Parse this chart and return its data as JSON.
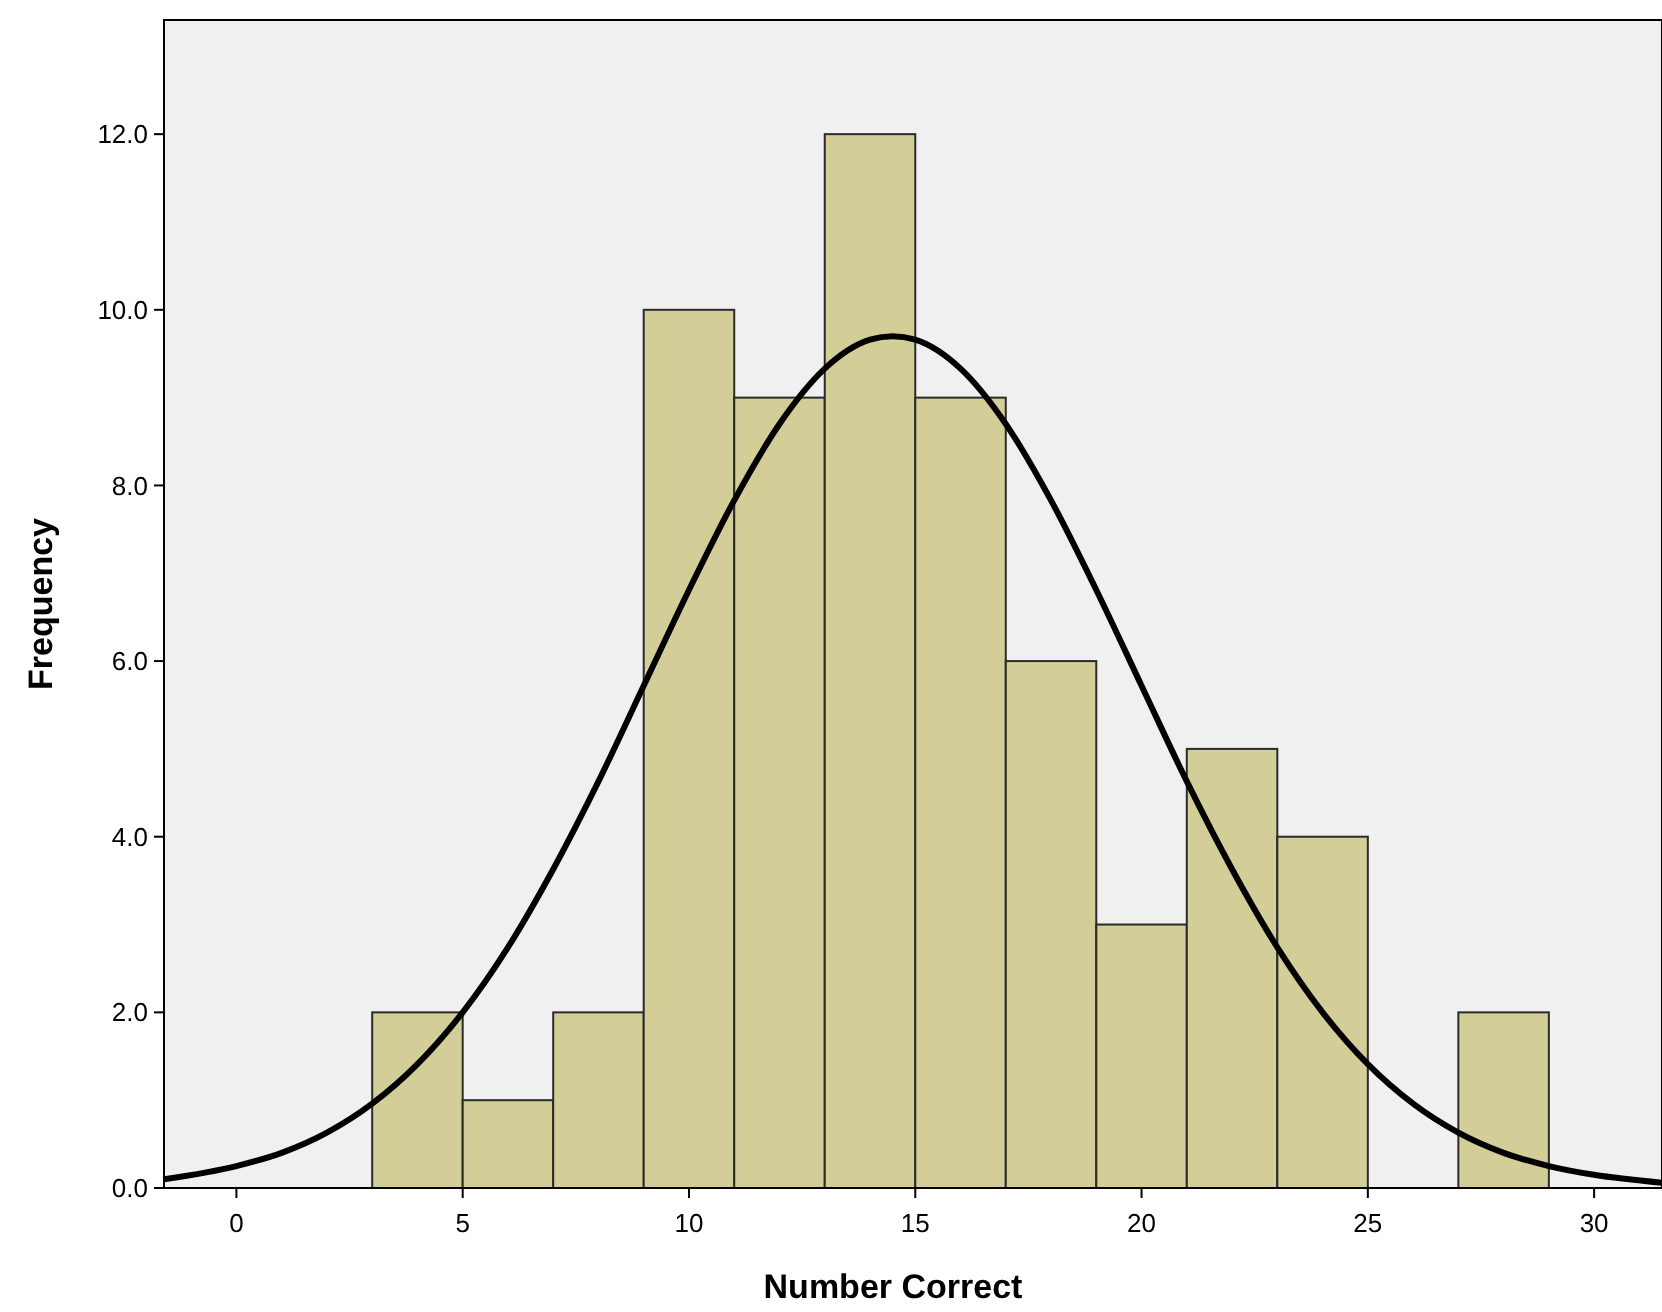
{
  "chart_data": {
    "type": "histogram",
    "xlabel": "Number Correct",
    "ylabel": "Frequency",
    "bins": [
      3,
      5,
      7,
      9,
      11,
      13,
      15,
      17,
      19,
      21,
      23,
      25,
      27,
      29
    ],
    "values": [
      2,
      1,
      2,
      10,
      9,
      12,
      9,
      6,
      3,
      5,
      4,
      0,
      2
    ],
    "color": "#d3ce98",
    "series": [
      {
        "type": "line",
        "color": "#000000",
        "x": [
          -1.6,
          0,
          1,
          2,
          3,
          4,
          5,
          6,
          7,
          8,
          9,
          10,
          11,
          12,
          13,
          14,
          14.5,
          15,
          16,
          17,
          18,
          19,
          20,
          21,
          22,
          23,
          24,
          25,
          26,
          27,
          28,
          29,
          30,
          31.5
        ],
        "values": [
          0.1,
          0.25,
          0.4,
          0.63,
          0.96,
          1.41,
          2.0,
          2.74,
          3.63,
          4.63,
          5.72,
          6.81,
          7.83,
          8.7,
          9.33,
          9.66,
          9.7,
          9.66,
          9.33,
          8.7,
          7.83,
          6.81,
          5.72,
          4.63,
          3.63,
          2.74,
          2.0,
          1.41,
          0.96,
          0.63,
          0.4,
          0.25,
          0.15,
          0.06
        ]
      }
    ],
    "xlim": [
      -1.6,
      31.5
    ],
    "xticks": [
      0,
      5,
      10,
      15,
      20,
      25,
      30
    ],
    "ylim": [
      0,
      13.3
    ],
    "yticks": [
      {
        "value": 0,
        "label": "0.0"
      },
      {
        "value": 2,
        "label": "2.0"
      },
      {
        "value": 4,
        "label": "4.0"
      },
      {
        "value": 6,
        "label": "6.0"
      },
      {
        "value": 8,
        "label": "8.0"
      },
      {
        "value": 10,
        "label": "10.0"
      },
      {
        "value": 12,
        "label": "12.0"
      }
    ],
    "grid": false
  }
}
